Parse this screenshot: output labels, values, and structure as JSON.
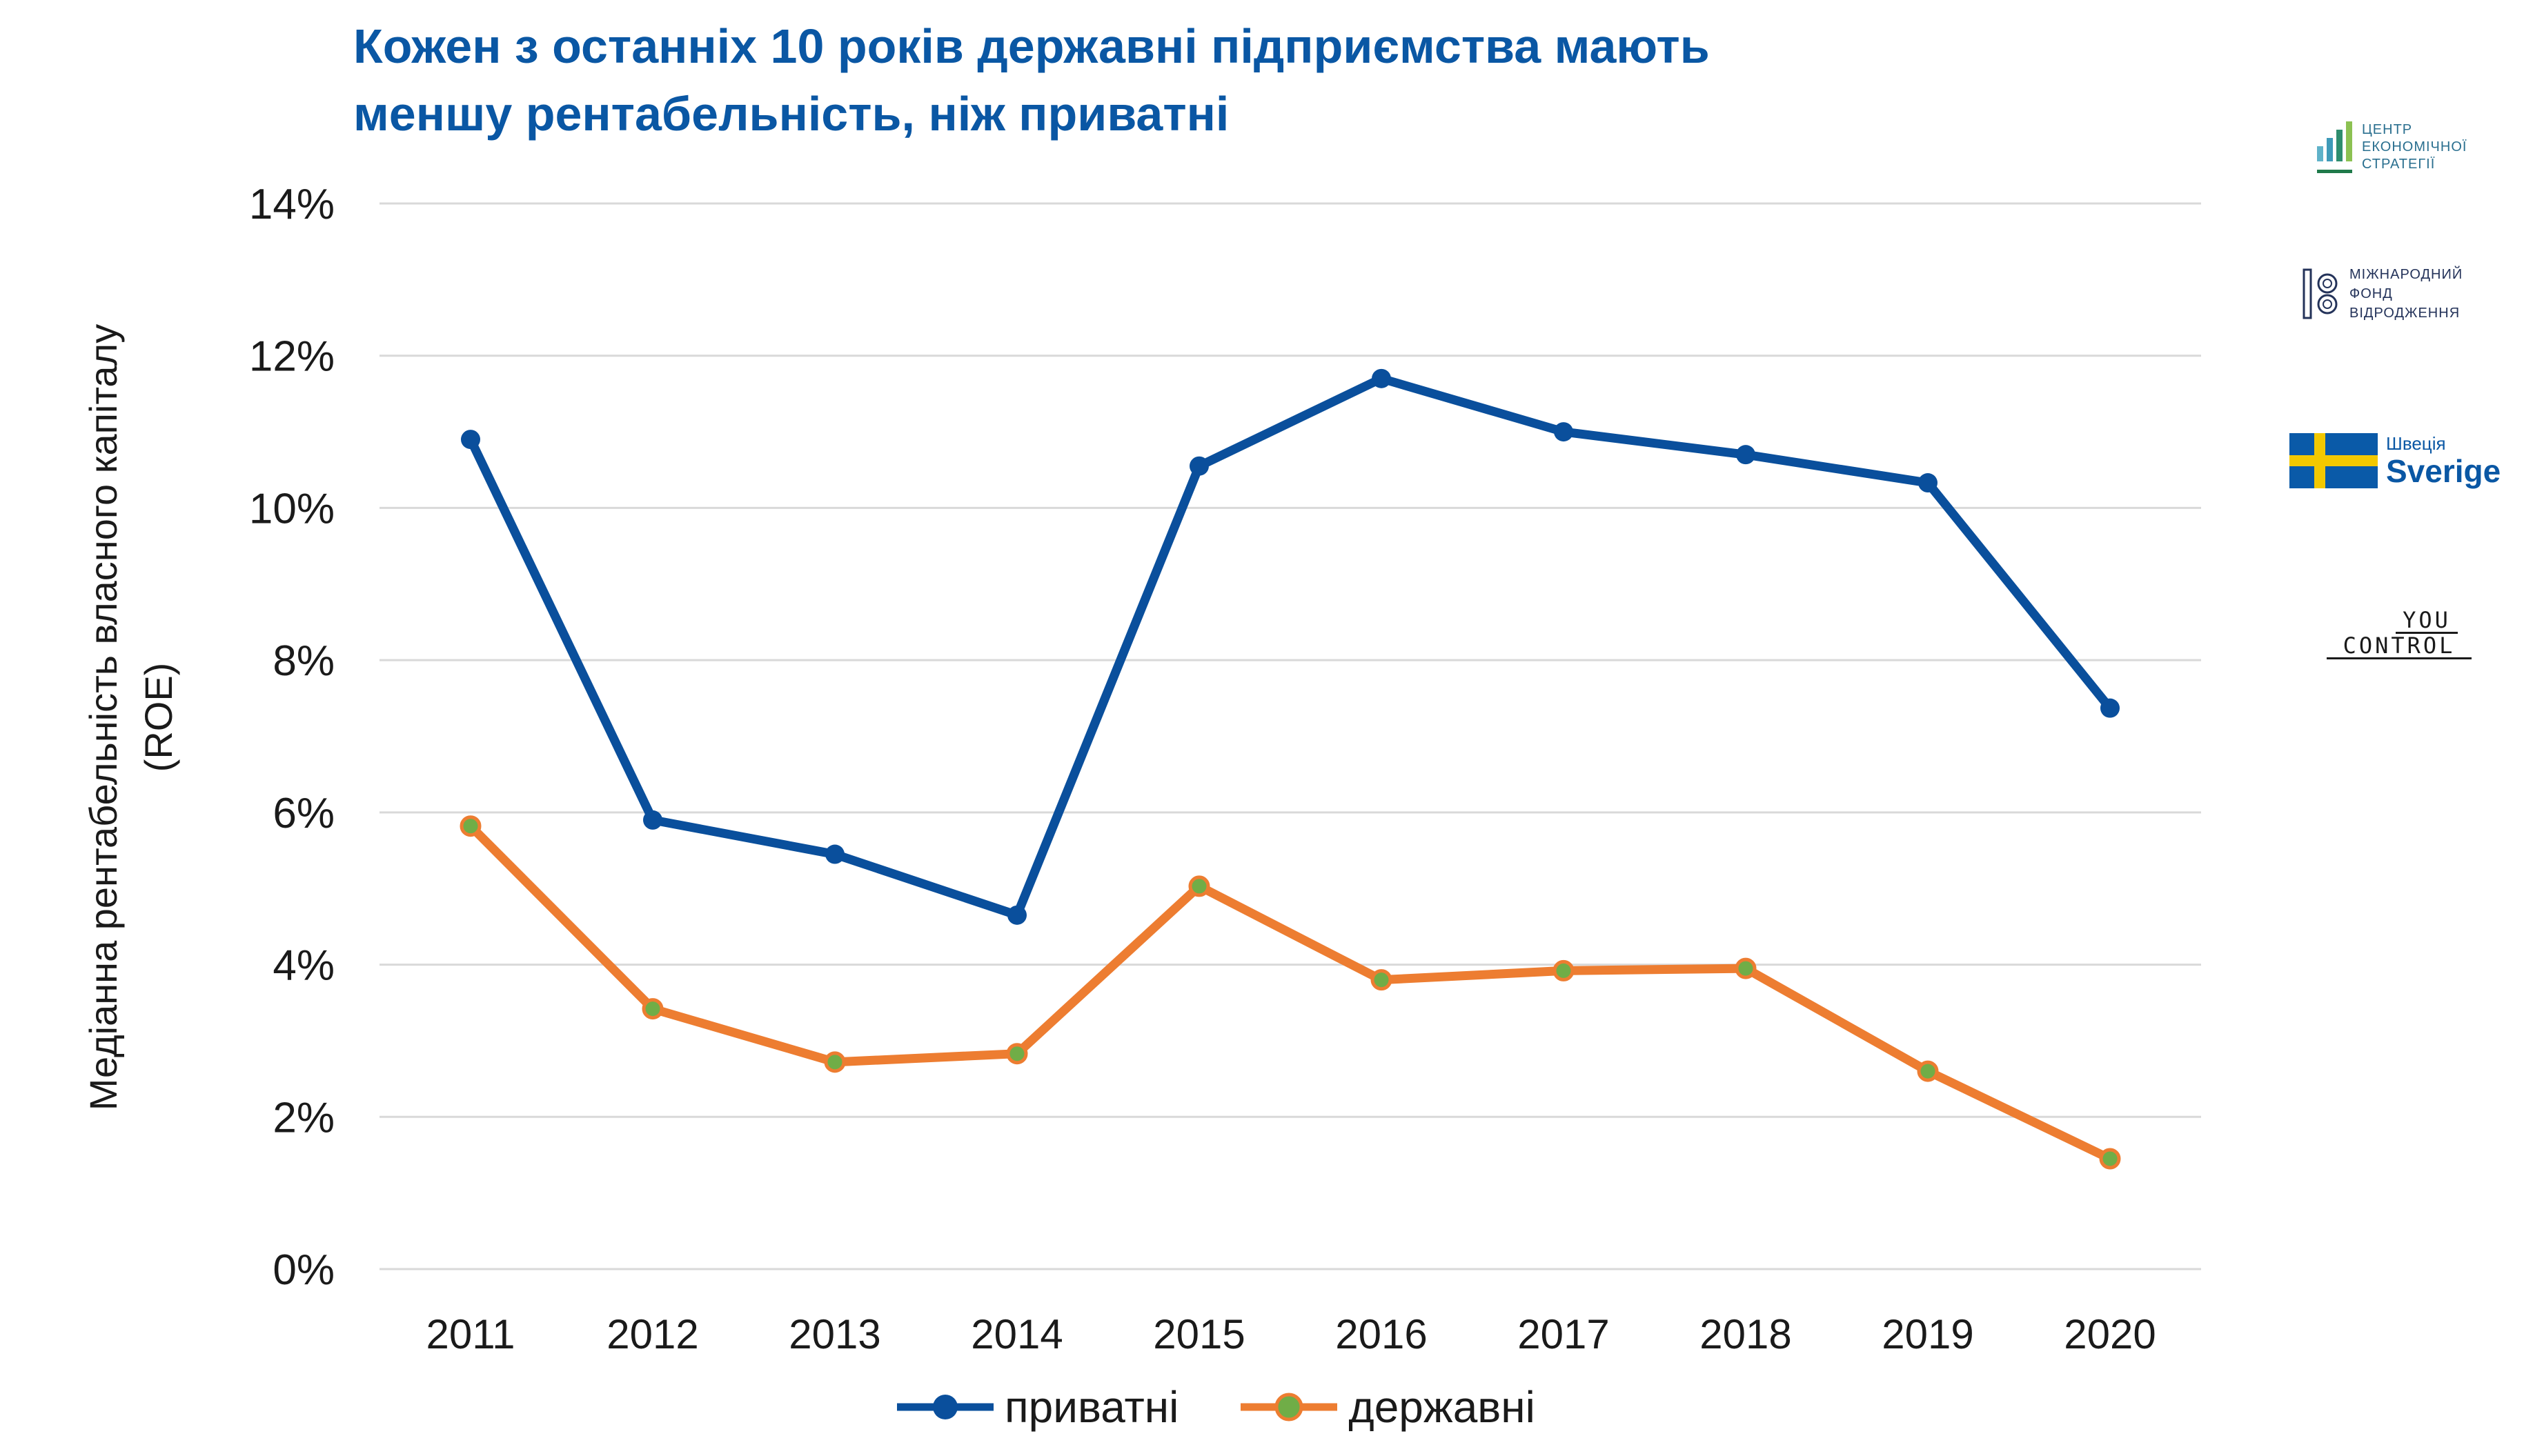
{
  "title_lines": [
    "Кожен з останніх 10 років державні підприємства мають",
    "меншу рентабельність, ніж приватні"
  ],
  "ylabel_lines": [
    "Медіанна рентабельність власного капіталу",
    "(ROE)"
  ],
  "chart_data": {
    "type": "line",
    "title": "Кожен з останніх 10 років державні підприємства мають меншу рентабельність, ніж приватні",
    "xlabel": "",
    "ylabel": "Медіанна рентабельність власного капіталу (ROE)",
    "x": [
      "2011",
      "2012",
      "2013",
      "2014",
      "2015",
      "2016",
      "2017",
      "2018",
      "2019",
      "2020"
    ],
    "ylim": [
      0,
      14
    ],
    "yticks": [
      0,
      2,
      4,
      6,
      8,
      10,
      12,
      14
    ],
    "ytick_labels": [
      "0%",
      "2%",
      "4%",
      "6%",
      "8%",
      "10%",
      "12%",
      "14%"
    ],
    "grid": true,
    "legend_position": "bottom",
    "series": [
      {
        "name": "приватні",
        "color": "#0a4f9c",
        "marker_color": "#0a4f9c",
        "values": [
          10.9,
          5.9,
          5.45,
          4.65,
          10.55,
          11.7,
          11.0,
          10.7,
          10.33,
          7.37
        ]
      },
      {
        "name": "державні",
        "color": "#ed7d31",
        "marker_color": "#70ad47",
        "values": [
          5.82,
          3.42,
          2.72,
          2.83,
          5.03,
          3.8,
          3.92,
          3.95,
          2.6,
          1.45
        ]
      }
    ]
  },
  "logos": {
    "ces": {
      "lines": [
        "ЦЕНТР",
        "ЕКОНОМІЧНОЇ",
        "СТРАТЕГІЇ"
      ]
    },
    "irf": {
      "lines": [
        "МІЖНАРОДНИЙ",
        "ФОНД",
        "ВІДРОДЖЕННЯ"
      ]
    },
    "sweden": {
      "line1": "Швеція",
      "line2": "Sverige"
    },
    "youcontrol": {
      "line1": "YOU",
      "line2": "CONTROL"
    }
  }
}
